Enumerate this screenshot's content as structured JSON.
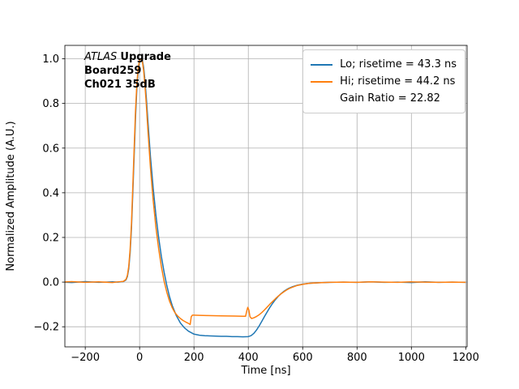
{
  "figure": {
    "background": "#ffffff",
    "grid_color": "#b0b0b0",
    "spine_color": "#000000",
    "annotation": {
      "atlas": "ATLAS",
      "upgrade": "Upgrade",
      "board": "Board259",
      "channel": "Ch021 35dB"
    }
  },
  "chart_data": {
    "type": "line",
    "title": "",
    "xlabel": "Time [ns]",
    "ylabel": "Normalized Amplitude (A.U.)",
    "xlim": [
      -275,
      1205
    ],
    "ylim": [
      -0.29,
      1.06
    ],
    "xticks": [
      -200,
      0,
      200,
      400,
      600,
      800,
      1000,
      1200
    ],
    "yticks": [
      -0.2,
      0.0,
      0.2,
      0.4,
      0.6,
      0.8,
      1.0
    ],
    "grid": true,
    "legend_position": "upper right",
    "series": [
      {
        "name": "Lo; risetime = 43.3 ns",
        "color": "#1f77b4",
        "x": [
          -300,
          -250,
          -200,
          -150,
          -100,
          -80,
          -60,
          -50,
          -45,
          -40,
          -35,
          -30,
          -25,
          -20,
          -15,
          -10,
          -5,
          0,
          5,
          10,
          15,
          20,
          25,
          30,
          40,
          50,
          60,
          70,
          80,
          90,
          100,
          110,
          120,
          135,
          150,
          165,
          180,
          200,
          220,
          240,
          260,
          280,
          300,
          320,
          340,
          360,
          380,
          400,
          410,
          420,
          430,
          440,
          450,
          460,
          470,
          480,
          490,
          500,
          510,
          520,
          530,
          540,
          550,
          560,
          580,
          600,
          620,
          640,
          660,
          680,
          700,
          750,
          800,
          850,
          900,
          950,
          1000,
          1050,
          1100,
          1150,
          1200
        ],
        "y": [
          0.001,
          -0.002,
          0.002,
          -0.001,
          0.001,
          0.0,
          0.002,
          0.01,
          0.025,
          0.06,
          0.13,
          0.24,
          0.4,
          0.57,
          0.74,
          0.87,
          0.95,
          0.99,
          1.0,
          0.995,
          0.96,
          0.9,
          0.82,
          0.73,
          0.56,
          0.42,
          0.3,
          0.2,
          0.115,
          0.045,
          -0.015,
          -0.065,
          -0.105,
          -0.15,
          -0.183,
          -0.205,
          -0.22,
          -0.233,
          -0.238,
          -0.24,
          -0.241,
          -0.242,
          -0.243,
          -0.243,
          -0.244,
          -0.244,
          -0.245,
          -0.244,
          -0.24,
          -0.23,
          -0.215,
          -0.196,
          -0.175,
          -0.153,
          -0.132,
          -0.112,
          -0.094,
          -0.078,
          -0.064,
          -0.052,
          -0.042,
          -0.034,
          -0.027,
          -0.022,
          -0.014,
          -0.009,
          -0.006,
          -0.004,
          -0.003,
          -0.002,
          -0.001,
          0.0,
          -0.001,
          0.001,
          -0.001,
          0.0,
          -0.002,
          0.001,
          -0.001,
          0.0,
          -0.001
        ]
      },
      {
        "name": "Hi; risetime = 44.2 ns",
        "color": "#ff7f0e",
        "x": [
          -300,
          -250,
          -200,
          -150,
          -100,
          -80,
          -60,
          -50,
          -45,
          -40,
          -35,
          -30,
          -25,
          -20,
          -15,
          -10,
          -5,
          0,
          5,
          10,
          15,
          20,
          25,
          30,
          40,
          50,
          60,
          70,
          80,
          90,
          100,
          110,
          120,
          130,
          140,
          150,
          160,
          170,
          180,
          186,
          190,
          194,
          200,
          220,
          250,
          300,
          350,
          380,
          390,
          394,
          398,
          402,
          406,
          412,
          420,
          430,
          440,
          450,
          460,
          470,
          480,
          490,
          500,
          510,
          520,
          530,
          540,
          550,
          560,
          580,
          600,
          620,
          640,
          660,
          680,
          700,
          750,
          800,
          850,
          900,
          950,
          1000,
          1050,
          1100,
          1150,
          1200
        ],
        "y": [
          0.0,
          0.002,
          -0.001,
          0.001,
          -0.002,
          0.001,
          0.003,
          0.012,
          0.03,
          0.07,
          0.145,
          0.26,
          0.43,
          0.6,
          0.77,
          0.89,
          0.96,
          0.995,
          1.0,
          0.99,
          0.945,
          0.875,
          0.79,
          0.69,
          0.51,
          0.365,
          0.245,
          0.15,
          0.07,
          0.005,
          -0.045,
          -0.085,
          -0.115,
          -0.137,
          -0.152,
          -0.163,
          -0.172,
          -0.179,
          -0.185,
          -0.19,
          -0.155,
          -0.148,
          -0.148,
          -0.149,
          -0.15,
          -0.151,
          -0.152,
          -0.153,
          -0.153,
          -0.13,
          -0.113,
          -0.125,
          -0.155,
          -0.163,
          -0.16,
          -0.154,
          -0.146,
          -0.136,
          -0.124,
          -0.111,
          -0.098,
          -0.086,
          -0.074,
          -0.063,
          -0.053,
          -0.044,
          -0.036,
          -0.029,
          -0.024,
          -0.015,
          -0.01,
          -0.006,
          -0.004,
          -0.003,
          -0.002,
          -0.001,
          0.0,
          -0.001,
          0.001,
          0.0,
          -0.001,
          0.001,
          0.0,
          -0.001,
          0.0,
          -0.001
        ]
      },
      {
        "name": "Gain Ratio = 22.82",
        "color": null
      }
    ]
  }
}
